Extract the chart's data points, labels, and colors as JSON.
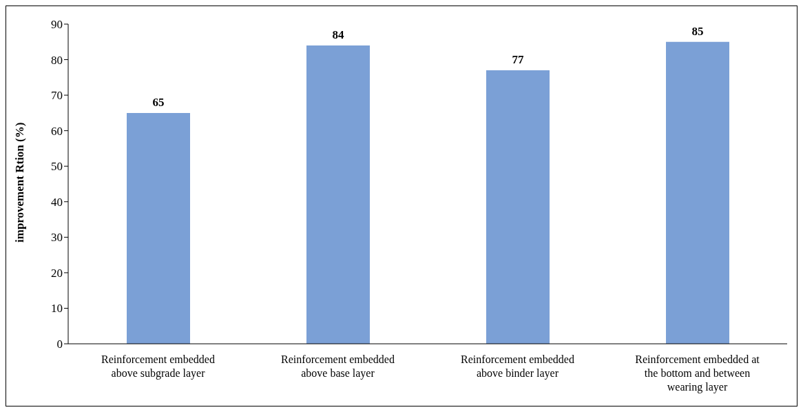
{
  "chart_data": {
    "type": "bar",
    "ylabel": "improvement Rtion (%)",
    "categories": [
      "Reinforcement embedded above subgrade layer",
      "Reinforcement embedded above base layer",
      "Reinforcement embedded above binder layer",
      "Reinforcement embedded at the bottom and between wearing layer"
    ],
    "values": [
      65,
      84,
      77,
      85
    ],
    "color": "#7ba0d6",
    "ylim": [
      0,
      90
    ],
    "yticks": [
      0,
      10,
      20,
      30,
      40,
      50,
      60,
      70,
      80,
      90
    ],
    "grid": false,
    "data_labels": true
  }
}
